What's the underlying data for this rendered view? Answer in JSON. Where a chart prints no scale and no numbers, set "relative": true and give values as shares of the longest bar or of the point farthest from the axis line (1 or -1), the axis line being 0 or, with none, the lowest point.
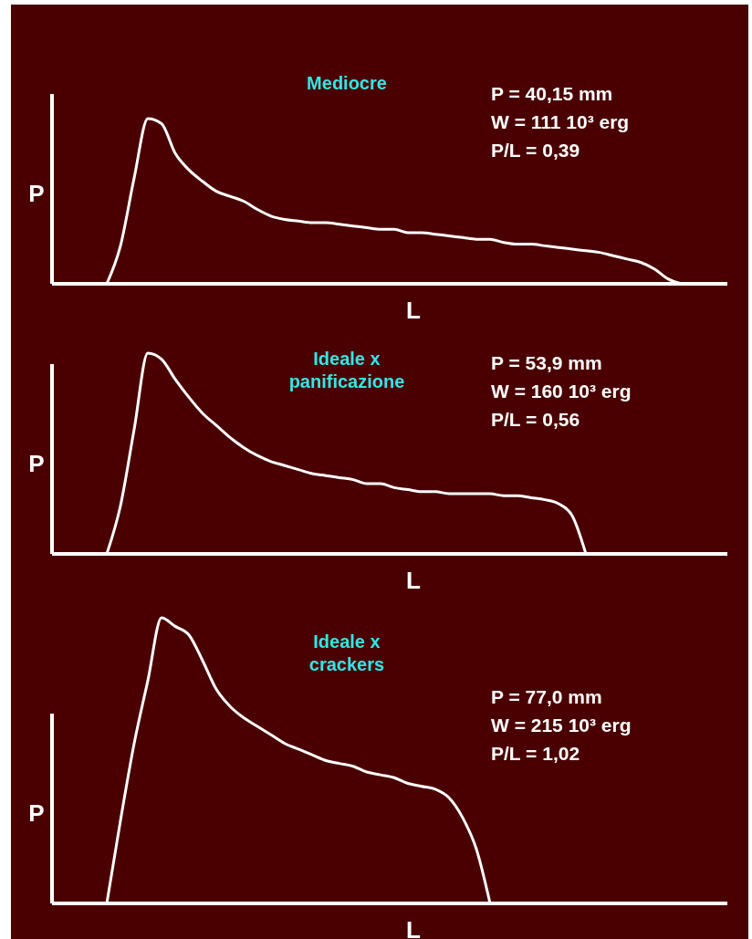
{
  "chart_data": [
    {
      "type": "line",
      "title": "Mediocre",
      "xlabel": "L",
      "ylabel": "P",
      "relative": true,
      "categories": [
        null,
        null,
        null,
        null,
        null,
        null,
        null,
        null,
        null,
        null,
        null,
        null,
        null,
        null,
        null,
        null,
        null,
        null,
        null,
        null,
        null,
        null,
        null,
        null,
        null,
        null,
        null,
        null,
        null,
        null,
        null,
        null,
        null,
        null,
        null,
        null,
        null,
        null,
        null,
        null,
        null,
        null,
        null,
        null,
        null,
        null,
        null,
        null,
        null,
        null
      ],
      "series": [
        {
          "color": "#ffffff",
          "values": [
            null,
            null,
            null,
            null,
            0,
            0.23,
            0.64,
            1,
            0.97,
            0.79,
            0.69,
            0.62,
            0.56,
            0.53,
            0.5,
            0.45,
            0.41,
            0.39,
            0.38,
            0.37,
            0.37,
            0.36,
            0.35,
            0.34,
            0.33,
            0.33,
            0.31,
            0.31,
            0.3,
            0.29,
            0.28,
            0.27,
            0.27,
            0.25,
            0.24,
            0.24,
            0.23,
            0.22,
            0.21,
            0.2,
            0.19,
            0.17,
            0.15,
            0.13,
            0.09,
            0.03,
            0,
            null,
            null,
            null
          ]
        }
      ],
      "annotations": [
        "P = 40,15 mm",
        "W = 111 10³ erg",
        "P/L = 0,39"
      ]
    },
    {
      "type": "line",
      "title": "Ideale x panificazione",
      "xlabel": "L",
      "ylabel": "P",
      "relative": true,
      "categories": [
        null,
        null,
        null,
        null,
        null,
        null,
        null,
        null,
        null,
        null,
        null,
        null,
        null,
        null,
        null,
        null,
        null,
        null,
        null,
        null,
        null,
        null,
        null,
        null,
        null,
        null,
        null,
        null,
        null,
        null,
        null,
        null,
        null,
        null,
        null,
        null,
        null,
        null,
        null,
        null,
        null,
        null,
        null,
        null,
        null,
        null,
        null,
        null,
        null,
        null
      ],
      "series": [
        {
          "color": "#ffffff",
          "values": [
            null,
            null,
            null,
            null,
            0,
            0.24,
            0.62,
            1,
            0.97,
            0.87,
            0.78,
            0.7,
            0.64,
            0.58,
            0.53,
            0.49,
            0.46,
            0.44,
            0.42,
            0.4,
            0.39,
            0.38,
            0.37,
            0.35,
            0.35,
            0.33,
            0.32,
            0.31,
            0.31,
            0.3,
            0.3,
            0.3,
            0.3,
            0.29,
            0.29,
            0.28,
            0.27,
            0.25,
            0.19,
            0,
            null,
            null,
            null,
            null,
            null,
            null,
            null,
            null,
            null,
            null
          ]
        }
      ],
      "annotations": [
        "P = 53,9 mm",
        "W = 160 10³ erg",
        "P/L = 0,56"
      ]
    },
    {
      "type": "line",
      "title": "Ideale x crackers",
      "xlabel": "L",
      "ylabel": "P",
      "relative": true,
      "categories": [
        null,
        null,
        null,
        null,
        null,
        null,
        null,
        null,
        null,
        null,
        null,
        null,
        null,
        null,
        null,
        null,
        null,
        null,
        null,
        null,
        null,
        null,
        null,
        null,
        null,
        null,
        null,
        null,
        null,
        null,
        null,
        null,
        null,
        null,
        null,
        null,
        null,
        null,
        null,
        null,
        null,
        null,
        null,
        null,
        null,
        null,
        null,
        null,
        null,
        null
      ],
      "series": [
        {
          "color": "#ffffff",
          "values": [
            null,
            null,
            null,
            null,
            0,
            0.29,
            0.56,
            0.78,
            1,
            0.97,
            0.94,
            0.85,
            0.75,
            0.69,
            0.65,
            0.62,
            0.59,
            0.56,
            0.54,
            0.52,
            0.5,
            0.49,
            0.48,
            0.46,
            0.45,
            0.44,
            0.42,
            0.41,
            0.4,
            0.37,
            0.3,
            0.19,
            0,
            null,
            null,
            null,
            null,
            null,
            null,
            null,
            null,
            null,
            null,
            null,
            null,
            null,
            null,
            null,
            null,
            null
          ]
        }
      ],
      "annotations": [
        "P = 77,0 mm",
        "W = 215  10³ erg",
        "P/L = 1,02"
      ]
    }
  ]
}
